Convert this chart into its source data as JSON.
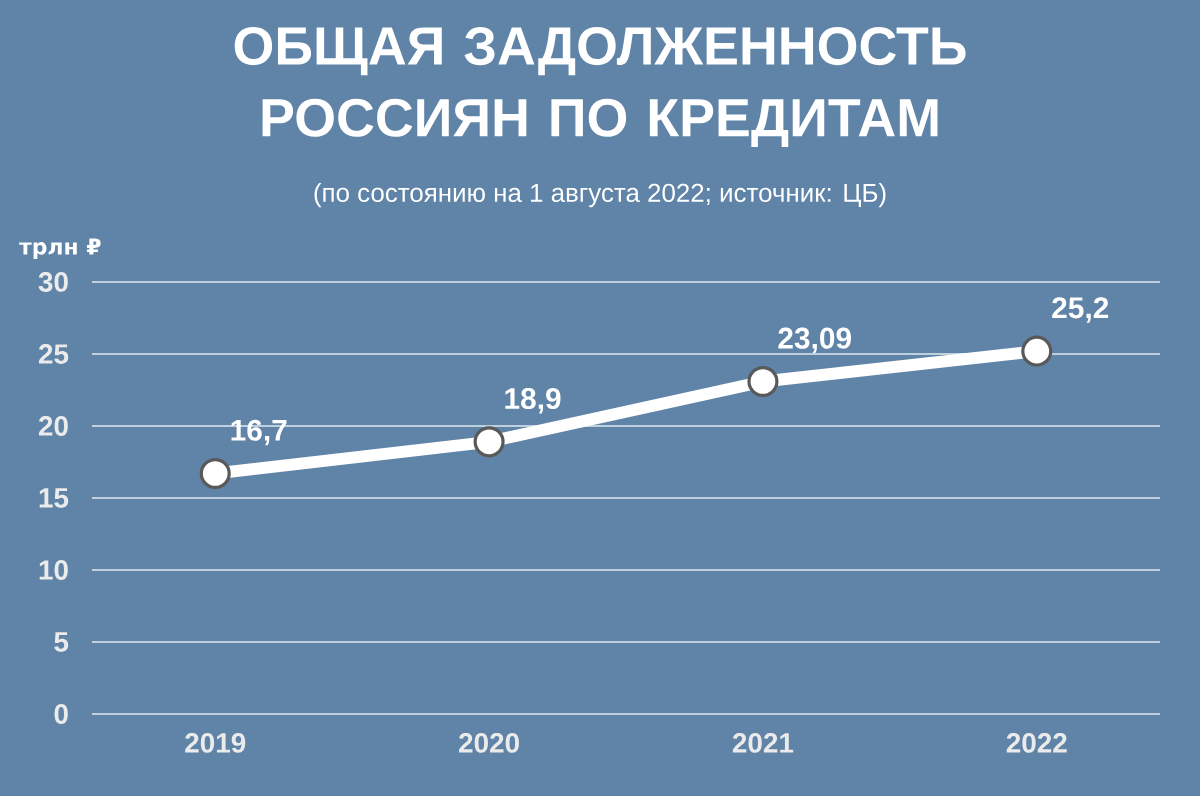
{
  "chart_data": {
    "type": "line",
    "title": "ОБЩАЯ ЗАДОЛЖЕННОСТЬ РОССИЯН ПО КРЕДИТАМ",
    "subtitle": "(по состоянию на 1 августа 2022; источник: ЦБ)",
    "ylabel": "трлн ₽",
    "categories": [
      "2019",
      "2020",
      "2021",
      "2022"
    ],
    "values": [
      16.7,
      18.9,
      23.09,
      25.2
    ],
    "value_labels": [
      "16,7",
      "18,9",
      "23,09",
      "25,2"
    ],
    "color": "#ffffff",
    "marker": "circle",
    "ylim": [
      0,
      30
    ],
    "yticks": [
      0,
      5,
      10,
      15,
      20,
      25,
      30
    ],
    "grid": "y"
  }
}
